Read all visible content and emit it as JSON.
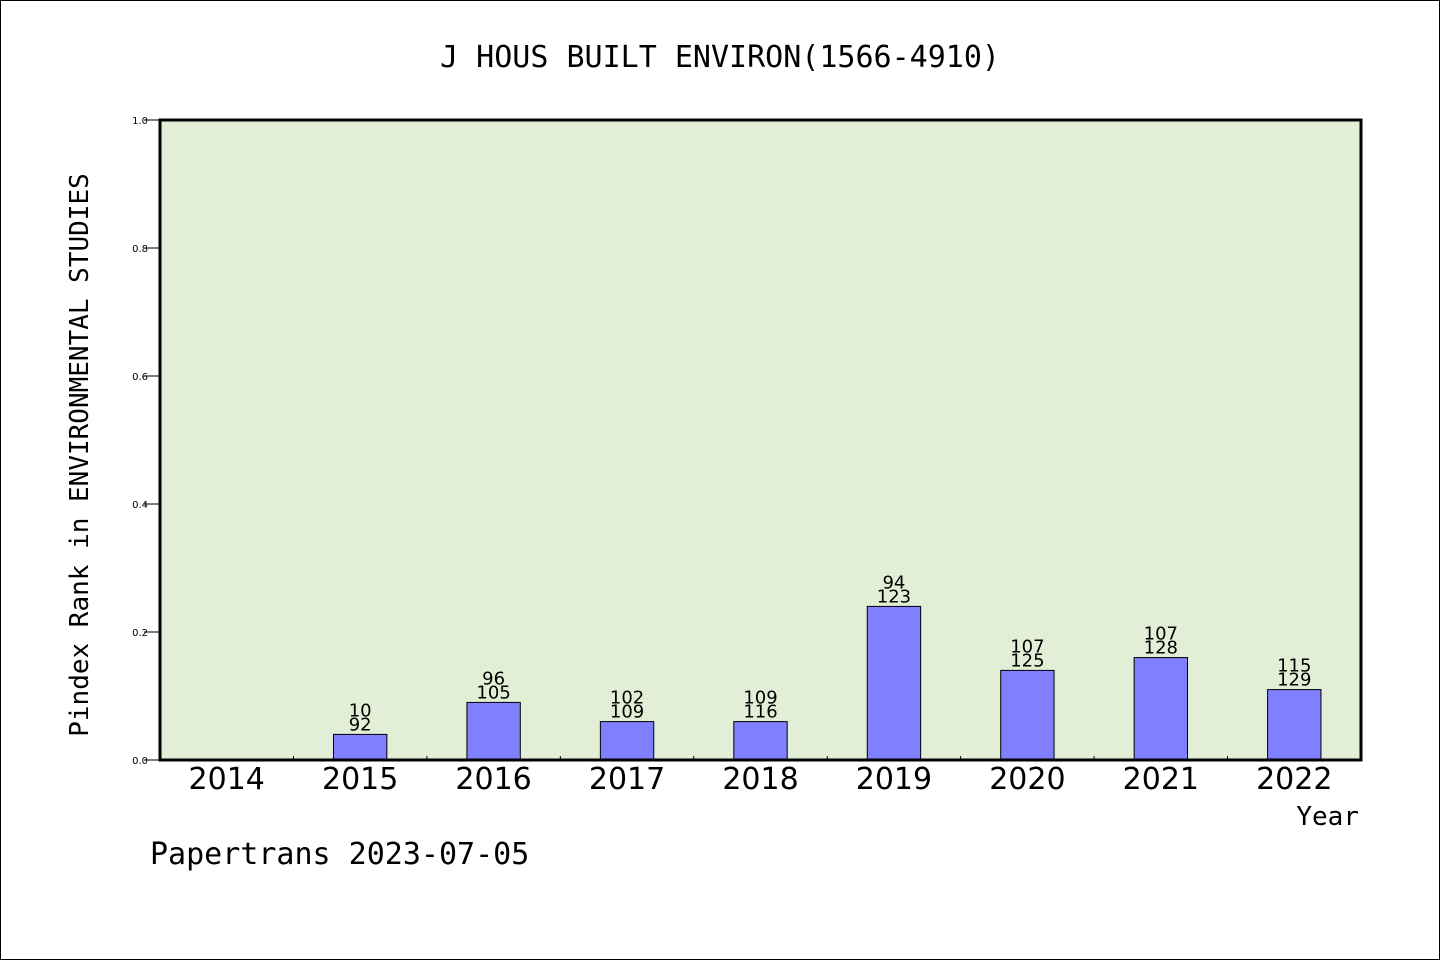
{
  "chart_data": {
    "type": "bar",
    "title": "J HOUS BUILT ENVIRON(1566-4910)",
    "xlabel": "Year",
    "ylabel": "Pindex Rank in ENVIRONMENTAL STUDIES",
    "ylim": [
      0,
      1.0
    ],
    "yticks": [
      "0.0",
      "0.2",
      "0.4",
      "0.6",
      "0.8",
      "1.0"
    ],
    "categories": [
      "2014",
      "2015",
      "2016",
      "2017",
      "2018",
      "2019",
      "2020",
      "2021",
      "2022"
    ],
    "values": [
      0,
      0.04,
      0.09,
      0.06,
      0.06,
      0.24,
      0.14,
      0.16,
      0.11
    ],
    "label_top": [
      "",
      "10",
      "96",
      "102",
      "109",
      "94",
      "107",
      "107",
      "115"
    ],
    "label_bottom": [
      "",
      "92",
      "105",
      "109",
      "116",
      "123",
      "125",
      "128",
      "129"
    ],
    "colors": {
      "plot_bg": "#e2efd6",
      "bar": "#8080ff"
    },
    "grid": false
  },
  "footer": {
    "text": "Papertrans 2023-07-05"
  }
}
